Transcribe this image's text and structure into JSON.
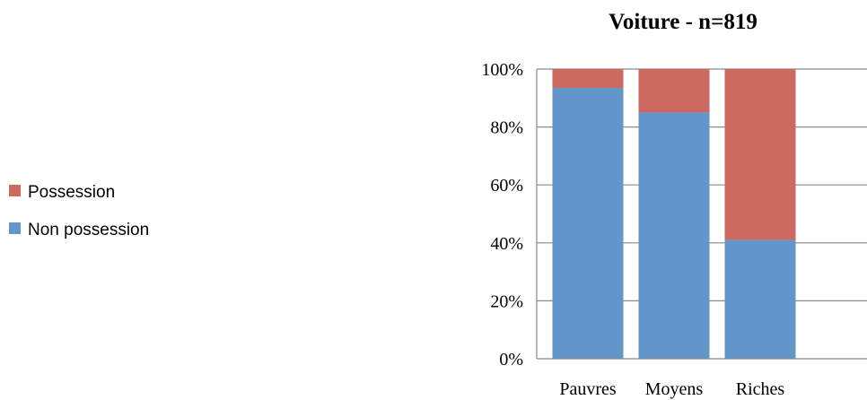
{
  "chart_data": {
    "type": "bar",
    "stacked": true,
    "title": "Voiture - n=819",
    "categories": [
      "Pauvres",
      "Moyens",
      "Riches"
    ],
    "series": [
      {
        "name": "Non possession",
        "values": [
          93.5,
          85,
          41
        ],
        "color": "#6497c9"
      },
      {
        "name": "Possession",
        "values": [
          6.5,
          15,
          59
        ],
        "color": "#cc6a62"
      }
    ],
    "ylim": [
      0,
      100
    ],
    "yticks": [
      "0%",
      "20%",
      "40%",
      "60%",
      "80%",
      "100%"
    ],
    "grid": true,
    "legend_position": "left"
  }
}
